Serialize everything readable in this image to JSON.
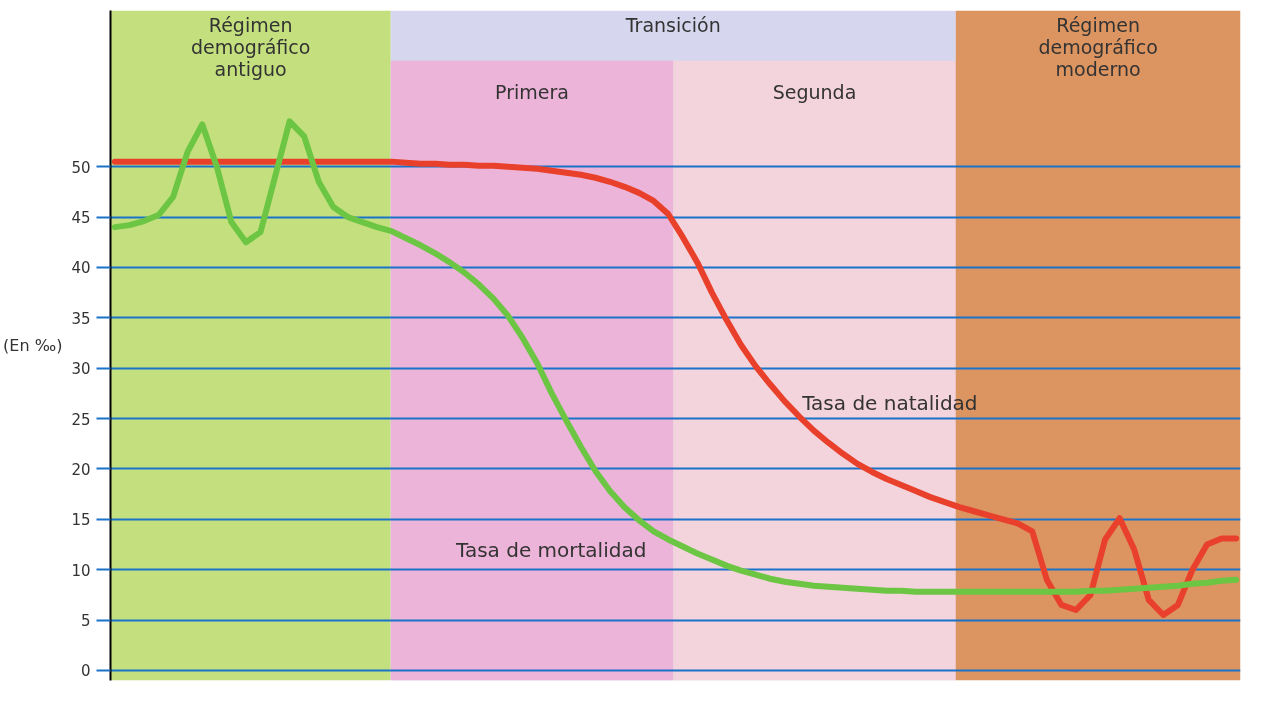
{
  "chart_data": {
    "type": "line",
    "ylabel": "(En ‰)",
    "ylim": [
      -1,
      65.5
    ],
    "yticks": [
      0,
      5,
      10,
      15,
      20,
      25,
      30,
      35,
      40,
      45,
      50
    ],
    "categories": [
      null,
      null,
      null,
      null,
      null,
      null,
      null,
      null,
      null,
      null,
      null,
      null,
      null,
      null,
      null,
      null,
      null,
      null,
      null,
      null,
      null,
      null,
      null,
      null,
      null,
      null,
      null,
      null,
      null,
      null,
      null,
      null,
      null,
      null,
      null,
      null,
      null,
      null,
      null,
      null,
      null,
      null,
      null,
      null,
      null,
      null,
      null,
      null,
      null,
      null,
      null,
      null,
      null,
      null,
      null,
      null,
      null,
      null,
      null,
      null,
      null,
      null,
      null,
      null,
      null,
      null,
      null,
      null,
      null,
      null,
      null,
      null,
      null,
      null,
      null,
      null,
      null,
      null
    ],
    "tick_labels": "y",
    "grid": "y",
    "line_style": "solid",
    "marker": "none",
    "series": [
      {
        "name": "Tasa de natalidad",
        "color": "#e8402a",
        "values": [
          50.5,
          50.5,
          50.5,
          50.5,
          50.5,
          50.5,
          50.5,
          50.5,
          50.5,
          50.5,
          50.5,
          50.5,
          50.5,
          50.5,
          50.5,
          50.5,
          50.5,
          50.5,
          50.5,
          50.5,
          50.4,
          50.3,
          50.3,
          50.2,
          50.2,
          50.1,
          50.1,
          50.0,
          49.9,
          49.8,
          49.6,
          49.4,
          49.2,
          48.9,
          48.5,
          48.0,
          47.4,
          46.6,
          45.3,
          43.0,
          40.5,
          37.5,
          34.8,
          32.3,
          30.2,
          28.4,
          26.7,
          25.2,
          23.8,
          22.6,
          21.5,
          20.5,
          19.7,
          19.0,
          18.4,
          17.8,
          17.2,
          16.7,
          16.2,
          15.8,
          15.4,
          15.0,
          14.6,
          13.8,
          9.0,
          6.5,
          6.0,
          7.5,
          13.0,
          15.1,
          12.0,
          7.0,
          5.5,
          6.5,
          10.0,
          12.5,
          13.1,
          13.1
        ]
      },
      {
        "name": "Tasa de mortalidad",
        "color": "#6cc644",
        "values": [
          44.0,
          44.2,
          44.6,
          45.2,
          47.0,
          51.5,
          54.2,
          50.0,
          44.5,
          42.5,
          43.5,
          49.0,
          54.5,
          53.0,
          48.5,
          46.0,
          45.0,
          44.5,
          44.0,
          43.6,
          42.9,
          42.2,
          41.4,
          40.5,
          39.5,
          38.3,
          36.9,
          35.2,
          33.0,
          30.5,
          27.5,
          24.8,
          22.2,
          19.8,
          17.8,
          16.2,
          14.9,
          13.8,
          13.0,
          12.3,
          11.6,
          11.0,
          10.4,
          9.9,
          9.5,
          9.1,
          8.8,
          8.6,
          8.4,
          8.3,
          8.2,
          8.1,
          8.0,
          7.9,
          7.9,
          7.8,
          7.8,
          7.8,
          7.8,
          7.8,
          7.8,
          7.8,
          7.8,
          7.8,
          7.8,
          7.8,
          7.8,
          7.9,
          7.9,
          8.0,
          8.1,
          8.2,
          8.3,
          8.4,
          8.6,
          8.7,
          8.9,
          9.0
        ]
      }
    ],
    "annotations": [
      "Régimen\ndemográfico\nantiguo",
      "Transición",
      "Primera",
      "Segunda",
      "Régimen\ndemográfico\nmoderno"
    ]
  }
}
